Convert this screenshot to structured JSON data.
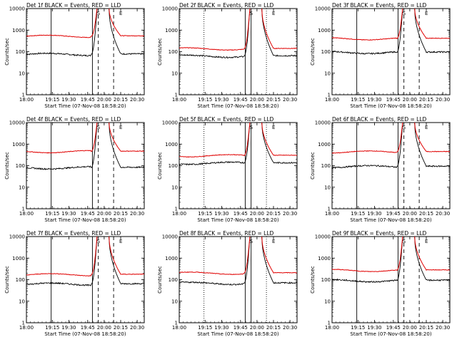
{
  "figure_colors": {
    "events": "#000000",
    "lld": "#e00000",
    "background": "#ffffff",
    "axes": "#000000"
  },
  "chart_data": [
    {
      "type": "line",
      "title": "Det 1f BLACK = Events, RED = LLD",
      "xlabel": "Start Time (07-Nov-08 18:58:20)",
      "ylabel": "Counts/sec",
      "yscale": "log",
      "ylim": [
        1,
        10000
      ],
      "xlim": [
        1800,
        2040
      ],
      "x_tick_labels": [
        "18:00",
        "19:15",
        "19:30",
        "19:45",
        "20:00",
        "20:15",
        "20:30"
      ],
      "y_tick_labels": [
        "1",
        "10",
        "100",
        "1000",
        "10000"
      ],
      "events_base": 75,
      "lld_base": 520,
      "peak": 12000,
      "solid_lines": [
        0,
        1
      ],
      "dashed_lines": [
        2,
        3
      ],
      "dotted_lines": [],
      "mark_labels": [
        "S",
        "E"
      ]
    },
    {
      "type": "line",
      "title": "Det 2f BLACK = Events, RED = LLD",
      "xlabel": "Start Time (07-Nov-08 18:58:20)",
      "ylabel": "Counts/sec",
      "yscale": "log",
      "ylim": [
        1,
        10000
      ],
      "xlim": [
        1800,
        2040
      ],
      "x_tick_labels": [
        "18:00",
        "19:15",
        "19:30",
        "19:45",
        "20:00",
        "20:15",
        "20:30"
      ],
      "y_tick_labels": [
        "1",
        "10",
        "100",
        "1000",
        "10000"
      ],
      "events_base": 62,
      "lld_base": 135,
      "peak": 12000,
      "solid_lines": [
        1,
        2
      ],
      "dashed_lines": [],
      "dotted_lines": [
        0,
        3
      ],
      "mark_labels": [
        "S",
        "E"
      ]
    },
    {
      "type": "line",
      "title": "Det 3f BLACK = Events, RED = LLD",
      "xlabel": "Start Time (07-Nov-08 18:58:20)",
      "ylabel": "Counts/sec",
      "yscale": "log",
      "ylim": [
        1,
        10000
      ],
      "xlim": [
        1800,
        2040
      ],
      "x_tick_labels": [
        "18:00",
        "19:15",
        "19:30",
        "19:45",
        "20:00",
        "20:15",
        "20:30"
      ],
      "y_tick_labels": [
        "1",
        "10",
        "100",
        "1000",
        "10000"
      ],
      "events_base": 92,
      "lld_base": 400,
      "peak": 12000,
      "solid_lines": [
        0,
        1
      ],
      "dashed_lines": [
        2,
        3
      ],
      "dotted_lines": [],
      "mark_labels": [
        "S",
        "E"
      ]
    },
    {
      "type": "line",
      "title": "Det 4f BLACK = Events, RED = LLD",
      "xlabel": "Start Time (07-Nov-08 18:58:20)",
      "ylabel": "Counts/sec",
      "yscale": "log",
      "ylim": [
        1,
        10000
      ],
      "xlim": [
        1800,
        2040
      ],
      "x_tick_labels": [
        "18:00",
        "19:15",
        "19:30",
        "19:45",
        "20:00",
        "20:15",
        "20:30"
      ],
      "y_tick_labels": [
        "1",
        "10",
        "100",
        "1000",
        "10000"
      ],
      "events_base": 80,
      "lld_base": 450,
      "peak": 12000,
      "solid_lines": [
        0,
        1
      ],
      "dashed_lines": [
        2,
        3
      ],
      "dotted_lines": [],
      "mark_labels": [
        "S",
        "E"
      ]
    },
    {
      "type": "line",
      "title": "Det 5f BLACK = Events, RED = LLD",
      "xlabel": "Start Time (07-Nov-08 18:58:20)",
      "ylabel": "Counts/sec",
      "yscale": "log",
      "ylim": [
        1,
        10000
      ],
      "xlim": [
        1800,
        2040
      ],
      "x_tick_labels": [
        "18:00",
        "19:15",
        "19:30",
        "19:45",
        "20:00",
        "20:15",
        "20:30"
      ],
      "y_tick_labels": [
        "1",
        "10",
        "100",
        "1000",
        "10000"
      ],
      "events_base": 130,
      "lld_base": 290,
      "peak": 12000,
      "solid_lines": [
        1,
        2
      ],
      "dashed_lines": [],
      "dotted_lines": [
        0,
        3
      ],
      "mark_labels": [
        "S",
        "E"
      ]
    },
    {
      "type": "line",
      "title": "Det 6f BLACK = Events, RED = LLD",
      "xlabel": "Start Time (07-Nov-08 18:58:20)",
      "ylabel": "Counts/sec",
      "yscale": "log",
      "ylim": [
        1,
        10000
      ],
      "xlim": [
        1800,
        2040
      ],
      "x_tick_labels": [
        "18:00",
        "19:15",
        "19:30",
        "19:45",
        "20:00",
        "20:15",
        "20:30"
      ],
      "y_tick_labels": [
        "1",
        "10",
        "100",
        "1000",
        "10000"
      ],
      "events_base": 90,
      "lld_base": 430,
      "peak": 12000,
      "solid_lines": [
        0,
        1
      ],
      "dashed_lines": [
        2,
        3
      ],
      "dotted_lines": [],
      "mark_labels": [
        "S",
        "E"
      ]
    },
    {
      "type": "line",
      "title": "Det 7f BLACK = Events, RED = LLD",
      "xlabel": "Start Time (07-Nov-08 18:58:20)",
      "ylabel": "Counts/sec",
      "yscale": "log",
      "ylim": [
        1,
        10000
      ],
      "xlim": [
        1800,
        2040
      ],
      "x_tick_labels": [
        "18:00",
        "19:15",
        "19:30",
        "19:45",
        "20:00",
        "20:15",
        "20:30"
      ],
      "y_tick_labels": [
        "1",
        "10",
        "100",
        "1000",
        "10000"
      ],
      "events_base": 62,
      "lld_base": 170,
      "peak": 12000,
      "solid_lines": [
        0,
        1
      ],
      "dashed_lines": [
        2,
        3
      ],
      "dotted_lines": [],
      "mark_labels": [
        "S",
        "E"
      ]
    },
    {
      "type": "line",
      "title": "Det 8f BLACK = Events, RED = LLD",
      "xlabel": "Start Time (07-Nov-08 18:58:20)",
      "ylabel": "Counts/sec",
      "yscale": "log",
      "ylim": [
        1,
        10000
      ],
      "xlim": [
        1800,
        2040
      ],
      "x_tick_labels": [
        "18:00",
        "19:15",
        "19:30",
        "19:45",
        "20:00",
        "20:15",
        "20:30"
      ],
      "y_tick_labels": [
        "1",
        "10",
        "100",
        "1000",
        "10000"
      ],
      "events_base": 68,
      "lld_base": 200,
      "peak": 12000,
      "solid_lines": [
        1,
        2
      ],
      "dashed_lines": [],
      "dotted_lines": [
        0,
        3
      ],
      "mark_labels": [
        "S",
        "E"
      ]
    },
    {
      "type": "line",
      "title": "Det 9f BLACK = Events, RED = LLD",
      "xlabel": "Start Time (07-Nov-08 18:58:20)",
      "ylabel": "Counts/sec",
      "yscale": "log",
      "ylim": [
        1,
        10000
      ],
      "xlim": [
        1800,
        2040
      ],
      "x_tick_labels": [
        "18:00",
        "19:15",
        "19:30",
        "19:45",
        "20:00",
        "20:15",
        "20:30"
      ],
      "y_tick_labels": [
        "1",
        "10",
        "100",
        "1000",
        "10000"
      ],
      "events_base": 90,
      "lld_base": 270,
      "peak": 12000,
      "solid_lines": [
        0,
        1
      ],
      "dashed_lines": [
        2,
        3
      ],
      "dotted_lines": [],
      "mark_labels": [
        "S",
        "E"
      ]
    }
  ]
}
